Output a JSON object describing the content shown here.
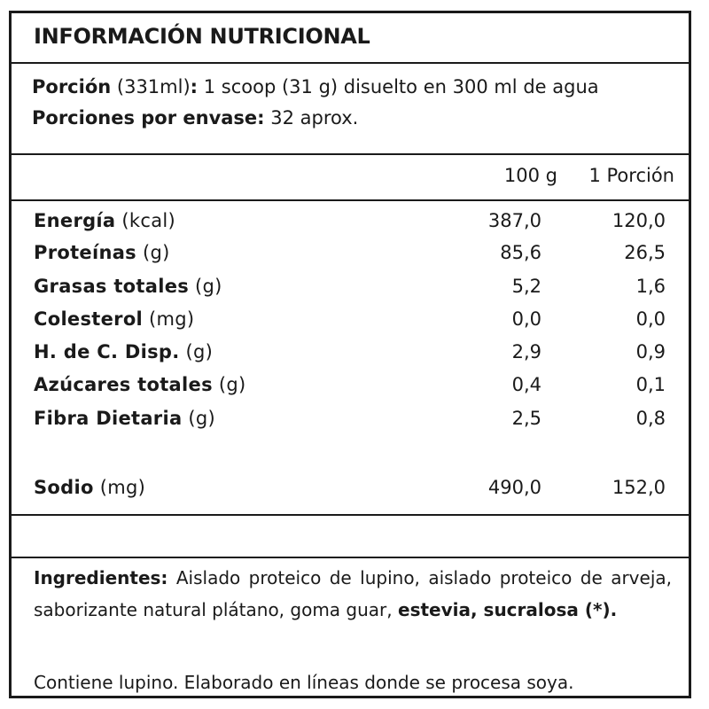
{
  "title": "INFORMACIÓN NUTRICIONAL",
  "portion": {
    "label": "Porción",
    "volume": "(331ml)",
    "colon": ":",
    "description": "1 scoop (31 g) disuelto en 300 ml de agua",
    "per_container_label": "Porciones por envase:",
    "per_container_value": "32 aprox."
  },
  "columns": {
    "per100": "100 g",
    "per_portion": "1 Porción"
  },
  "nutrients": [
    {
      "name": "Energía",
      "unit": "(kcal)",
      "per100": "387,0",
      "per_portion": "120,0"
    },
    {
      "name": "Proteínas",
      "unit": "(g)",
      "per100": "85,6",
      "per_portion": "26,5"
    },
    {
      "name": "Grasas totales",
      "unit": "(g)",
      "per100": "5,2",
      "per_portion": "1,6"
    },
    {
      "name": "Colesterol",
      "unit": "(mg)",
      "per100": "0,0",
      "per_portion": "0,0"
    },
    {
      "name": "H. de C. Disp.",
      "unit": "(g)",
      "per100": "2,9",
      "per_portion": "0,9"
    },
    {
      "name": "Azúcares totales",
      "unit": "(g)",
      "per100": "0,4",
      "per_portion": "0,1"
    },
    {
      "name": "Fibra Dietaria",
      "unit": "(g)",
      "per100": "2,5",
      "per_portion": "0,8"
    },
    {
      "name": "Sodio",
      "unit": "(mg)",
      "per100": "490,0",
      "per_portion": "152,0"
    }
  ],
  "ingredients": {
    "label": "Ingredientes:",
    "text": " Aislado proteico de lupino, aislado proteico de arveja, saborizante natural plátano, goma guar, ",
    "bold_tail": "estevia, sucralosa (*)."
  },
  "contains": "Contiene lupino. Elaborado en líneas donde se procesa soya."
}
